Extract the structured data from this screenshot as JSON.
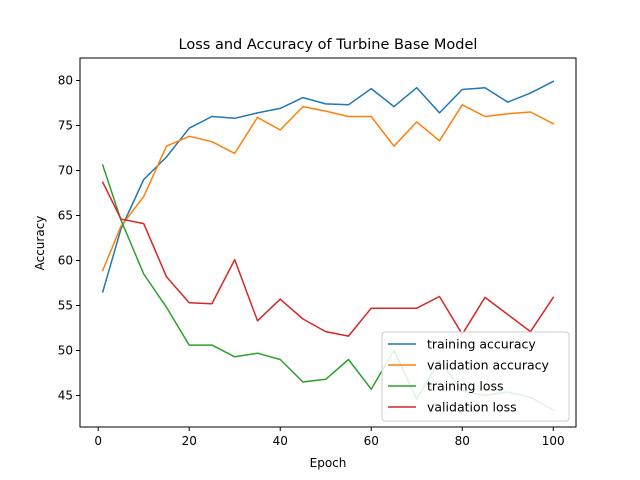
{
  "chart_data": {
    "type": "line",
    "title": "Loss and Accuracy of Turbine Base Model",
    "xlabel": "Epoch",
    "ylabel": "Accuracy",
    "xlim": [
      -4,
      105
    ],
    "ylim": [
      41.5,
      82.5
    ],
    "xticks": [
      0,
      20,
      40,
      60,
      80,
      100
    ],
    "yticks": [
      45,
      50,
      55,
      60,
      65,
      70,
      75,
      80
    ],
    "grid": false,
    "legend_position": "lower right",
    "x": [
      1,
      5,
      10,
      15,
      20,
      25,
      30,
      35,
      40,
      45,
      50,
      55,
      60,
      65,
      70,
      75,
      80,
      85,
      90,
      95,
      100
    ],
    "series": [
      {
        "name": "training accuracy",
        "color": "#1f77b4",
        "values": [
          56.5,
          63.5,
          69.0,
          71.5,
          74.7,
          76.0,
          75.8,
          76.4,
          76.9,
          78.1,
          77.4,
          77.3,
          79.1,
          77.1,
          79.2,
          76.4,
          79.0,
          79.2,
          77.6,
          78.6,
          79.9
        ]
      },
      {
        "name": "validation accuracy",
        "color": "#ff7f0e",
        "values": [
          58.9,
          63.8,
          67.1,
          72.7,
          73.8,
          73.2,
          71.9,
          75.9,
          74.5,
          77.1,
          76.6,
          76.0,
          76.0,
          72.7,
          75.4,
          73.3,
          77.3,
          76.0,
          76.3,
          76.5,
          75.2
        ]
      },
      {
        "name": "training loss",
        "color": "#2ca02c",
        "values": [
          70.6,
          64.5,
          58.5,
          54.8,
          50.6,
          50.6,
          49.3,
          49.7,
          49.0,
          46.5,
          46.8,
          49.0,
          45.7,
          50.0,
          44.6,
          48.9,
          45.5,
          45.0,
          45.4,
          44.8,
          43.4
        ]
      },
      {
        "name": "validation loss",
        "color": "#d62728",
        "values": [
          68.7,
          64.6,
          64.1,
          58.2,
          55.3,
          55.2,
          60.1,
          53.3,
          55.7,
          53.5,
          52.1,
          51.6,
          54.7,
          54.7,
          54.7,
          56.0,
          51.8,
          55.9,
          54.0,
          52.1,
          55.9
        ]
      }
    ]
  }
}
